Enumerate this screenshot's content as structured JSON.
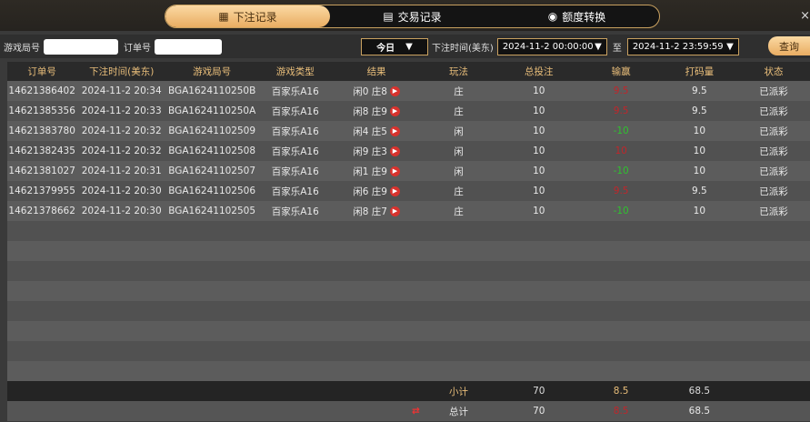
{
  "tabs": [
    {
      "label": "下注记录",
      "icon": "calendar-icon",
      "active": true
    },
    {
      "label": "交易记录",
      "icon": "document-icon"
    },
    {
      "label": "额度转换",
      "icon": "coins-icon"
    }
  ],
  "close": "×",
  "filters": {
    "game_no_label": "游戏局号",
    "game_no_value": "",
    "order_no_label": "订单号",
    "order_no_value": "",
    "period": "今日",
    "time_label": "下注时间(美东)",
    "start": "2024-11-2 00:00:00",
    "to": "至",
    "end": "2024-11-2 23:59:59",
    "query": "查询"
  },
  "columns": [
    "订单号",
    "下注时间(美东)",
    "游戏局号",
    "游戏类型",
    "结果",
    "玩法",
    "总投注",
    "输赢",
    "打码量",
    "状态"
  ],
  "rows": [
    [
      "14621386402",
      "2024-11-2 20:34",
      "BGA1624110250B",
      "百家乐A16",
      "闲0 庄8",
      "庄",
      "10",
      "9.5",
      "9.5",
      "已派彩"
    ],
    [
      "14621385356",
      "2024-11-2 20:33",
      "BGA1624110250A",
      "百家乐A16",
      "闲8 庄9",
      "庄",
      "10",
      "9.5",
      "9.5",
      "已派彩"
    ],
    [
      "14621383780",
      "2024-11-2 20:32",
      "BGA16241102509",
      "百家乐A16",
      "闲4 庄5",
      "闲",
      "10",
      "-10",
      "10",
      "已派彩"
    ],
    [
      "14621382435",
      "2024-11-2 20:32",
      "BGA16241102508",
      "百家乐A16",
      "闲9 庄3",
      "闲",
      "10",
      "10",
      "10",
      "已派彩"
    ],
    [
      "14621381027",
      "2024-11-2 20:31",
      "BGA16241102507",
      "百家乐A16",
      "闲1 庄9",
      "闲",
      "10",
      "-10",
      "10",
      "已派彩"
    ],
    [
      "14621379955",
      "2024-11-2 20:30",
      "BGA16241102506",
      "百家乐A16",
      "闲6 庄9",
      "庄",
      "10",
      "9.5",
      "9.5",
      "已派彩"
    ],
    [
      "14621378662",
      "2024-11-2 20:30",
      "BGA16241102505",
      "百家乐A16",
      "闲8 庄7",
      "庄",
      "10",
      "-10",
      "10",
      "已派彩"
    ]
  ],
  "subtotal": {
    "label": "小计",
    "bet": "70",
    "winloss": "8.5",
    "turnover": "68.5"
  },
  "total": {
    "label": "总计",
    "bet": "70",
    "winloss": "8.5",
    "turnover": "68.5"
  },
  "colors": {
    "accent": "#e9ad62",
    "loss": "#c0262b",
    "win": "#2fc12f"
  }
}
